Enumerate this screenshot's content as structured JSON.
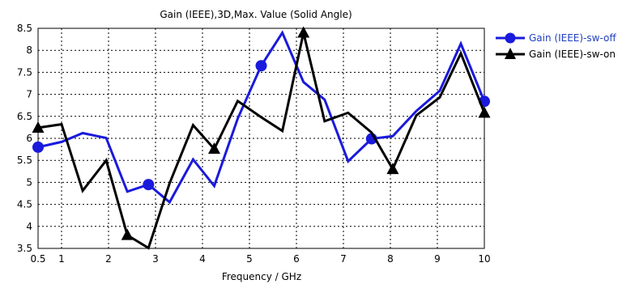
{
  "chart_data": {
    "type": "line",
    "title": "Gain (IEEE),3D,Max. Value (Solid Angle)",
    "xlabel": "Frequency / GHz",
    "ylabel": "",
    "xlim": [
      0.5,
      10
    ],
    "ylim": [
      3.5,
      8.5
    ],
    "x_ticks": [
      "0.5",
      "1",
      "2",
      "3",
      "4",
      "5",
      "6",
      "7",
      "8",
      "9",
      "10"
    ],
    "y_ticks": [
      "3.5",
      "4",
      "4.5",
      "5",
      "5.5",
      "6",
      "6.5",
      "7",
      "7.5",
      "8",
      "8.5"
    ],
    "grid": true,
    "legend_position": "right",
    "series": [
      {
        "name": "Gain (IEEE)-sw-off",
        "color": "#1a1adc",
        "marker": "circle",
        "x": [
          0.5,
          1.0,
          1.45,
          1.95,
          2.4,
          2.85,
          3.3,
          3.8,
          4.25,
          4.75,
          5.25,
          5.7,
          6.15,
          6.6,
          7.1,
          7.6,
          8.05,
          8.55,
          9.05,
          9.5,
          10.0
        ],
        "y": [
          5.8,
          5.92,
          6.12,
          6.01,
          4.79,
          4.95,
          4.55,
          5.52,
          4.92,
          6.45,
          7.65,
          8.4,
          7.28,
          6.88,
          5.48,
          5.99,
          6.05,
          6.62,
          7.08,
          8.15,
          6.84
        ],
        "marker_x": [
          0.5,
          2.85,
          5.25,
          7.6,
          10.0
        ]
      },
      {
        "name": "Gain (IEEE)-sw-on",
        "color": "#000000",
        "marker": "triangle",
        "x": [
          0.5,
          1.0,
          1.45,
          1.95,
          2.4,
          2.85,
          3.3,
          3.8,
          4.25,
          4.75,
          5.25,
          5.7,
          6.15,
          6.6,
          7.1,
          7.6,
          8.05,
          8.55,
          9.05,
          9.5,
          10.0
        ],
        "y": [
          6.24,
          6.32,
          4.81,
          5.5,
          3.8,
          3.51,
          4.98,
          6.3,
          5.76,
          6.85,
          6.48,
          6.17,
          8.4,
          6.39,
          6.58,
          6.13,
          5.3,
          6.52,
          6.93,
          7.93,
          6.58
        ],
        "marker_x": [
          0.5,
          2.4,
          4.25,
          6.15,
          8.05,
          10.0
        ]
      }
    ]
  }
}
